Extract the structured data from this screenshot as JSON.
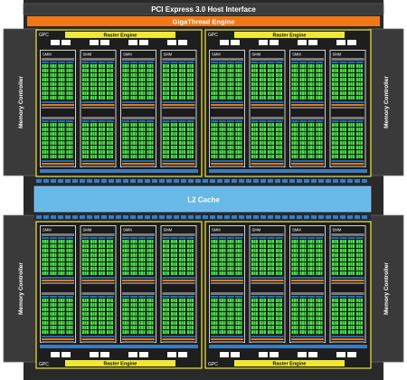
{
  "header": {
    "pcie_label": "PCI Express 3.0 Host Interface",
    "gigathread_label": "GigaThread Engine"
  },
  "memory_controller_label": "Memory Controller",
  "l2_cache_label": "L2 Cache",
  "gpc_label": "GPC",
  "raster_engine_label": "Raster Engine",
  "smm_label": "SMM",
  "counts": {
    "gpcs": 4,
    "smms_per_gpc": 4,
    "memory_controllers": 4
  },
  "colors": {
    "background": "#2a2a2a",
    "pcie_bar": "#3c3c3c",
    "gigathread": "#f07818",
    "gpc_border": "#f0e838",
    "raster_engine": "#f0e838",
    "l2_cache": "#68b8e8",
    "cuda_core": "#44e044",
    "load_store": "#1c6cb8",
    "special_unit": "#e87818"
  }
}
